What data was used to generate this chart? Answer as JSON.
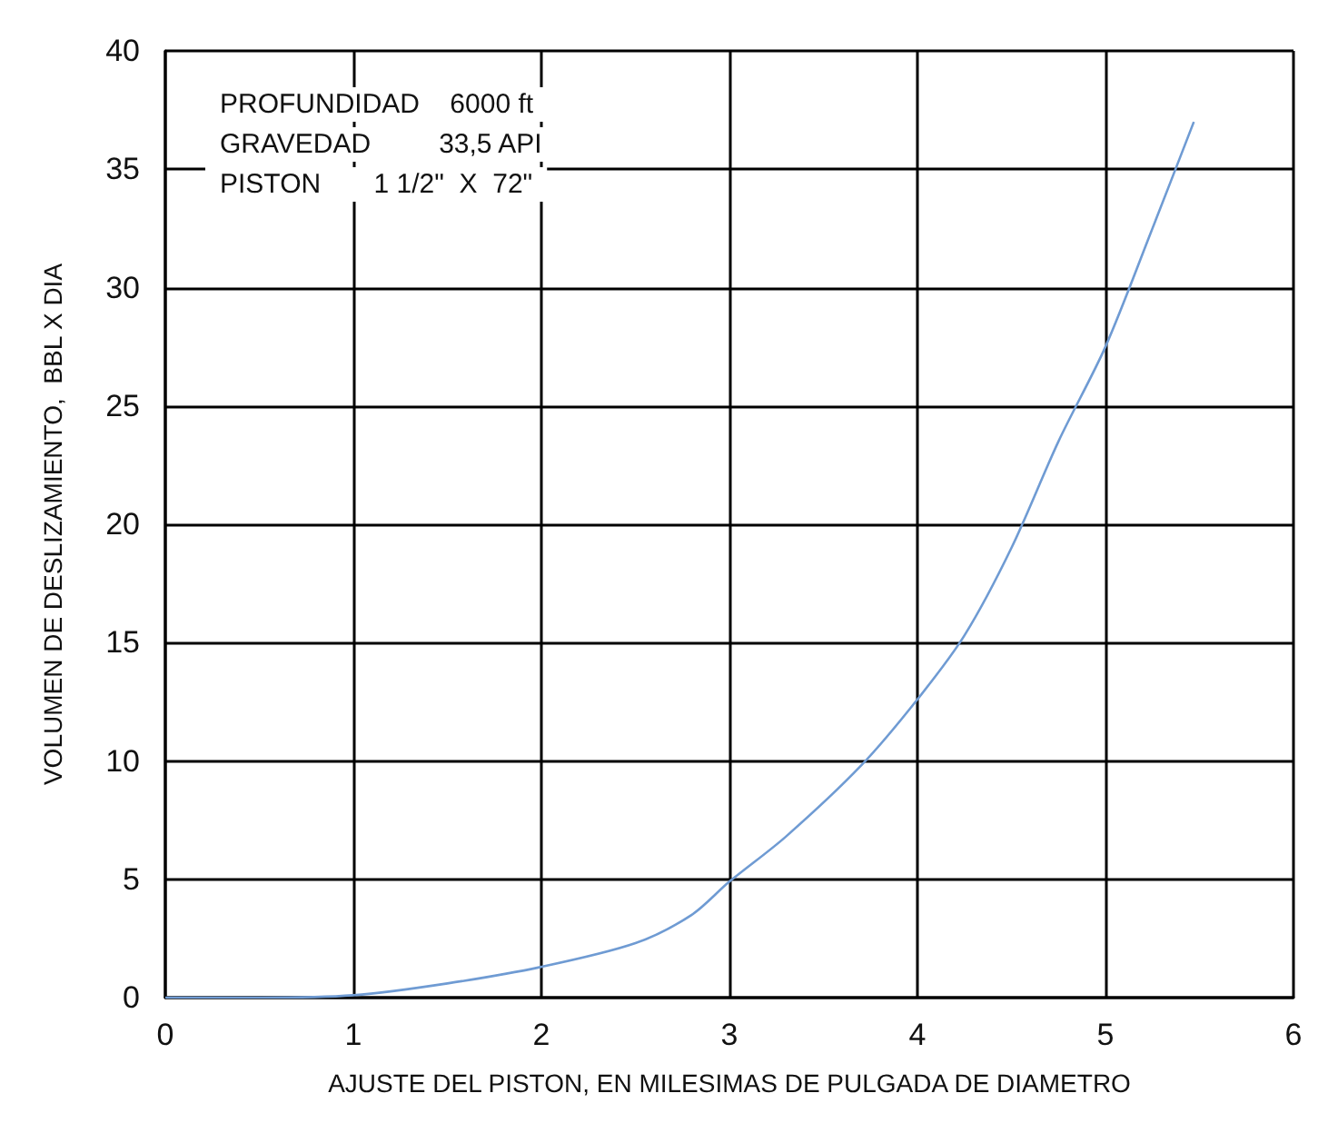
{
  "chart_data": {
    "type": "line",
    "xlabel": "AJUSTE DEL PISTON, EN MILESIMAS DE PULGADA DE DIAMETRO",
    "ylabel": "VOLUMEN DE DESLIZAMIENTO,  BBL X DIA",
    "annotations": [
      "PROFUNDIDAD    6000 ft",
      "GRAVEDAD         33,5 API",
      "PISTON       1 1/2\"  X  72\""
    ],
    "xlim": [
      0,
      6
    ],
    "xticks": [
      0,
      1,
      2,
      3,
      4,
      5,
      6
    ],
    "ylim": [
      0,
      40
    ],
    "yticks": [
      0,
      5,
      10,
      15,
      20,
      25,
      30,
      35,
      40
    ],
    "grid": true,
    "marker": "none",
    "line_style": "solid",
    "series": [
      {
        "color": "#6f9bd3",
        "x": [
          0,
          0.5,
          1,
          1.5,
          2,
          2.5,
          2.8,
          3,
          3.3,
          3.7,
          4,
          4.25,
          4.5,
          4.75,
          5,
          5.25,
          5.47
        ],
        "values": [
          0,
          0,
          0.1,
          0.6,
          1.3,
          2.3,
          3.5,
          4.9,
          6.8,
          9.8,
          12.6,
          15.3,
          19,
          23.5,
          27.5,
          32.5,
          37
        ]
      }
    ]
  }
}
